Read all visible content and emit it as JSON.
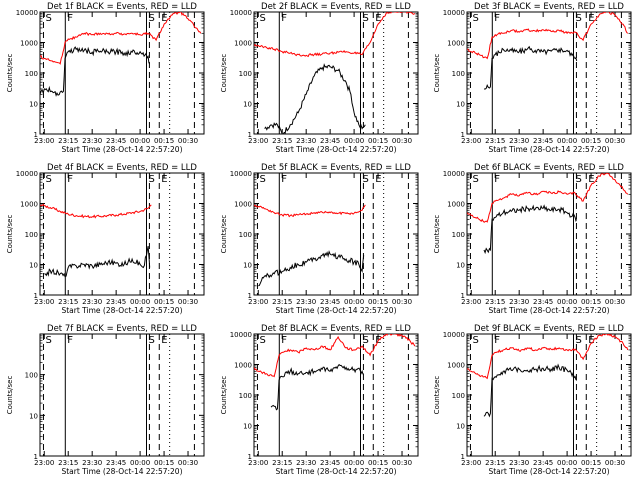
{
  "chart_data": [
    {
      "type": "line",
      "panel": "1f",
      "title": "Det 1f BLACK = Events, RED = LLD",
      "ylabel": "Counts/sec",
      "xlabel": "Start Time (28-Oct-14 22:57:20)",
      "x_ticks": [
        "23:00",
        "23:15",
        "23:30",
        "23:45",
        "00:00",
        "00:15",
        "00:30"
      ],
      "y_ticks": [
        "1",
        "10",
        "100",
        "1000",
        "10000"
      ],
      "ylim": [
        1,
        10000
      ],
      "yscale": "log",
      "markers": [
        "S",
        "F",
        "S",
        "E"
      ],
      "series": [
        {
          "color": "#000000",
          "x": [
            "22:57:20",
            "23:00",
            "23:05",
            "23:08",
            "23:12",
            "23:13",
            "23:15",
            "23:20",
            "23:25",
            "23:30",
            "23:35",
            "23:40",
            "23:45",
            "23:50",
            "23:55",
            "00:00",
            "00:05",
            "00:06"
          ],
          "y": [
            20,
            30,
            25,
            22,
            25,
            300,
            500,
            600,
            550,
            480,
            520,
            490,
            500,
            450,
            480,
            500,
            350,
            200
          ]
        },
        {
          "color": "#ff0000",
          "x": [
            "22:57:20",
            "23:00",
            "23:05",
            "23:10",
            "23:13",
            "23:15",
            "23:20",
            "23:25",
            "23:30",
            "23:35",
            "23:40",
            "23:45",
            "23:50",
            "23:55",
            "00:00",
            "00:05",
            "00:10",
            "00:15",
            "00:20",
            "00:25",
            "00:30",
            "00:35",
            "00:38"
          ],
          "y": [
            350,
            300,
            250,
            200,
            1000,
            1300,
            1500,
            2000,
            1800,
            2000,
            1900,
            2000,
            1900,
            2000,
            1800,
            2000,
            1200,
            4000,
            8000,
            10000,
            6000,
            3000,
            2000
          ]
        }
      ]
    },
    {
      "type": "line",
      "panel": "2f",
      "title": "Det 2f BLACK = Events, RED = LLD",
      "ylabel": "Counts/sec",
      "xlabel": "Start Time (28-Oct-14 22:57:20)",
      "x_ticks": [
        "23:00",
        "23:15",
        "23:30",
        "23:45",
        "00:00",
        "00:15",
        "00:30"
      ],
      "y_ticks": [
        "1",
        "10",
        "100",
        "1000",
        "10000"
      ],
      "ylim": [
        1,
        10000
      ],
      "yscale": "log",
      "markers": [
        "S",
        "F",
        "S",
        "E"
      ],
      "series": [
        {
          "color": "#000000",
          "x": [
            "23:04",
            "23:08",
            "23:12",
            "23:15",
            "23:20",
            "23:25",
            "23:30",
            "23:35",
            "23:40",
            "23:45",
            "23:50",
            "23:55",
            "23:58",
            "00:00",
            "00:03",
            "00:05",
            "00:07"
          ],
          "y": [
            1.5,
            2,
            2,
            1,
            2,
            5,
            20,
            80,
            150,
            160,
            120,
            50,
            20,
            5,
            2,
            1.5,
            2
          ]
        },
        {
          "color": "#ff0000",
          "x": [
            "22:57:20",
            "23:00",
            "23:05",
            "23:10",
            "23:15",
            "23:20",
            "23:25",
            "23:30",
            "23:35",
            "23:40",
            "23:45",
            "23:50",
            "23:55",
            "00:00",
            "00:05",
            "00:10",
            "00:15",
            "00:20",
            "00:25",
            "00:30",
            "00:35",
            "00:38"
          ],
          "y": [
            800,
            800,
            700,
            600,
            500,
            450,
            400,
            380,
            400,
            420,
            450,
            480,
            500,
            450,
            400,
            1000,
            4000,
            9000,
            10000,
            10000,
            10000,
            9000
          ]
        }
      ]
    },
    {
      "type": "line",
      "panel": "3f",
      "title": "Det 3f BLACK = Events, RED = LLD",
      "ylabel": "Counts/sec",
      "xlabel": "Start Time (28-Oct-14 22:57:20)",
      "x_ticks": [
        "23:00",
        "23:15",
        "23:30",
        "23:45",
        "00:00",
        "00:15",
        "00:30"
      ],
      "y_ticks": [
        "1",
        "10",
        "100",
        "1000",
        "10000"
      ],
      "ylim": [
        1,
        10000
      ],
      "yscale": "log",
      "markers": [
        "S",
        "F",
        "S",
        "E"
      ],
      "series": [
        {
          "color": "#000000",
          "x": [
            "23:08",
            "23:12",
            "23:13",
            "23:15",
            "23:20",
            "23:25",
            "23:30",
            "23:35",
            "23:40",
            "23:45",
            "23:50",
            "23:55",
            "00:00",
            "00:05",
            "00:06"
          ],
          "y": [
            30,
            35,
            300,
            400,
            600,
            550,
            500,
            600,
            550,
            500,
            520,
            600,
            550,
            300,
            250
          ]
        },
        {
          "color": "#ff0000",
          "x": [
            "22:57:20",
            "23:00",
            "23:05",
            "23:10",
            "23:13",
            "23:15",
            "23:20",
            "23:25",
            "23:30",
            "23:35",
            "23:40",
            "23:45",
            "23:50",
            "23:55",
            "00:00",
            "00:05",
            "00:10",
            "00:15",
            "00:20",
            "00:25",
            "00:30",
            "00:35",
            "00:38"
          ],
          "y": [
            600,
            500,
            400,
            300,
            1500,
            1800,
            2000,
            2500,
            2200,
            2600,
            2400,
            2600,
            2300,
            2500,
            2000,
            2200,
            1200,
            4000,
            8000,
            10000,
            8000,
            4000,
            2000
          ]
        }
      ]
    },
    {
      "type": "line",
      "panel": "4f",
      "title": "Det 4f BLACK = Events, RED = LLD",
      "ylabel": "Counts/sec",
      "xlabel": "Start Time (28-Oct-14 22:57:20)",
      "x_ticks": [
        "23:00",
        "23:15",
        "23:30",
        "23:45",
        "00:00",
        "00:15",
        "00:30"
      ],
      "y_ticks": [
        "1",
        "10",
        "100",
        "1000",
        "10000"
      ],
      "ylim": [
        1,
        10000
      ],
      "yscale": "log",
      "markers": [
        "S",
        "F",
        "S",
        "E"
      ],
      "series": [
        {
          "color": "#000000",
          "x": [
            "23:00",
            "23:05",
            "23:10",
            "23:13",
            "23:15",
            "23:20",
            "23:25",
            "23:30",
            "23:35",
            "23:40",
            "23:45",
            "23:50",
            "23:55",
            "00:00",
            "00:02",
            "00:04",
            "00:05",
            "00:06"
          ],
          "y": [
            5,
            6,
            5,
            4,
            8,
            9,
            10,
            9,
            10,
            12,
            11,
            10,
            15,
            10,
            8,
            20,
            40,
            8
          ]
        },
        {
          "color": "#ff0000",
          "x": [
            "22:57:20",
            "23:00",
            "23:05",
            "23:10",
            "23:15",
            "23:20",
            "23:25",
            "23:30",
            "23:35",
            "23:40",
            "23:45",
            "23:50",
            "23:55",
            "00:00",
            "00:05",
            "00:07"
          ],
          "y": [
            900,
            850,
            700,
            550,
            450,
            400,
            380,
            370,
            380,
            400,
            420,
            450,
            500,
            550,
            700,
            900
          ]
        }
      ]
    },
    {
      "type": "line",
      "panel": "5f",
      "title": "Det 5f BLACK = Events, RED = LLD",
      "ylabel": "Counts/sec",
      "xlabel": "Start Time (28-Oct-14 22:57:20)",
      "x_ticks": [
        "23:00",
        "23:15",
        "23:30",
        "23:45",
        "00:00",
        "00:15",
        "00:30"
      ],
      "y_ticks": [
        "1",
        "10",
        "100",
        "1000",
        "10000"
      ],
      "ylim": [
        1,
        10000
      ],
      "yscale": "log",
      "markers": [
        "S",
        "F",
        "S",
        "E"
      ],
      "series": [
        {
          "color": "#000000",
          "x": [
            "23:00",
            "23:02",
            "23:05",
            "23:10",
            "23:15",
            "23:20",
            "23:25",
            "23:30",
            "23:35",
            "23:40",
            "23:45",
            "23:50",
            "23:55",
            "00:00",
            "00:03",
            "00:05",
            "00:06"
          ],
          "y": [
            2,
            3,
            4,
            5,
            6,
            8,
            10,
            12,
            15,
            20,
            22,
            18,
            15,
            12,
            10,
            6,
            20
          ]
        },
        {
          "color": "#ff0000",
          "x": [
            "22:57:20",
            "23:00",
            "23:05",
            "23:10",
            "23:15",
            "23:20",
            "23:25",
            "23:30",
            "23:35",
            "23:40",
            "23:45",
            "23:50",
            "23:55",
            "00:00",
            "00:05",
            "00:07"
          ],
          "y": [
            900,
            800,
            650,
            500,
            420,
            400,
            420,
            450,
            500,
            520,
            500,
            480,
            470,
            480,
            600,
            900
          ]
        }
      ]
    },
    {
      "type": "line",
      "panel": "6f",
      "title": "Det 6f BLACK = Events, RED = LLD",
      "ylabel": "Counts/sec",
      "xlabel": "Start Time (28-Oct-14 22:57:20)",
      "x_ticks": [
        "23:00",
        "23:15",
        "23:30",
        "23:45",
        "00:00",
        "00:15",
        "00:30"
      ],
      "y_ticks": [
        "1",
        "10",
        "100",
        "1000",
        "10000"
      ],
      "ylim": [
        1,
        10000
      ],
      "yscale": "log",
      "markers": [
        "S",
        "F",
        "S",
        "E"
      ],
      "series": [
        {
          "color": "#000000",
          "x": [
            "23:08",
            "23:12",
            "23:13",
            "23:15",
            "23:20",
            "23:25",
            "23:30",
            "23:35",
            "23:40",
            "23:45",
            "23:50",
            "23:55",
            "00:00",
            "00:05",
            "00:06"
          ],
          "y": [
            30,
            30,
            300,
            350,
            500,
            550,
            600,
            700,
            650,
            700,
            600,
            650,
            500,
            350,
            300
          ]
        },
        {
          "color": "#ff0000",
          "x": [
            "22:57:20",
            "23:00",
            "23:05",
            "23:10",
            "23:13",
            "23:15",
            "23:20",
            "23:25",
            "23:30",
            "23:35",
            "23:40",
            "23:45",
            "23:50",
            "23:55",
            "00:00",
            "00:05",
            "00:10",
            "00:15",
            "00:20",
            "00:25",
            "00:30",
            "00:35",
            "00:38"
          ],
          "y": [
            500,
            400,
            300,
            250,
            1000,
            1200,
            1500,
            2000,
            1800,
            2200,
            2000,
            2500,
            2200,
            2400,
            2000,
            2200,
            1200,
            4000,
            8000,
            10000,
            6000,
            3000,
            2000
          ]
        }
      ]
    },
    {
      "type": "line",
      "panel": "7f",
      "title": "Det 7f BLACK = Events, RED = LLD",
      "ylabel": "Counts/sec",
      "xlabel": "Start Time (28-Oct-14 22:57:20)",
      "x_ticks": [
        "23:00",
        "23:15",
        "23:30",
        "23:45",
        "00:00",
        "00:15",
        "00:30"
      ],
      "y_ticks": [
        "1",
        "10",
        "100"
      ],
      "ylim": [
        1,
        1000
      ],
      "yscale": "log",
      "markers": [
        "S",
        "F",
        "S",
        "E"
      ],
      "series": []
    },
    {
      "type": "line",
      "panel": "8f",
      "title": "Det 8f BLACK = Events, RED = LLD",
      "ylabel": "Counts/sec",
      "xlabel": "Start Time (28-Oct-14 22:57:20)",
      "x_ticks": [
        "23:00",
        "23:15",
        "23:30",
        "23:45",
        "00:00",
        "00:15",
        "00:30"
      ],
      "y_ticks": [
        "1",
        "10",
        "100",
        "1000",
        "10000"
      ],
      "ylim": [
        1,
        10000
      ],
      "yscale": "log",
      "markers": [
        "S",
        "F",
        "S",
        "E"
      ],
      "series": [
        {
          "color": "#000000",
          "x": [
            "23:08",
            "23:12",
            "23:13",
            "23:15",
            "23:20",
            "23:25",
            "23:30",
            "23:35",
            "23:40",
            "23:45",
            "23:50",
            "23:55",
            "00:00",
            "00:05",
            "00:06"
          ],
          "y": [
            40,
            35,
            300,
            400,
            600,
            500,
            550,
            600,
            700,
            600,
            900,
            800,
            700,
            600,
            500
          ]
        },
        {
          "color": "#ff0000",
          "x": [
            "22:57:20",
            "23:00",
            "23:05",
            "23:10",
            "23:13",
            "23:15",
            "23:20",
            "23:25",
            "23:30",
            "23:35",
            "23:40",
            "23:45",
            "23:50",
            "23:55",
            "00:00",
            "00:05",
            "00:10",
            "00:15",
            "00:20",
            "00:25",
            "00:30",
            "00:35",
            "00:38"
          ],
          "y": [
            800,
            600,
            500,
            400,
            2000,
            2500,
            3000,
            2500,
            3500,
            3000,
            4000,
            3000,
            8000,
            3500,
            3000,
            4000,
            2000,
            6000,
            10000,
            10000,
            9000,
            6000,
            4000
          ]
        }
      ]
    },
    {
      "type": "line",
      "panel": "9f",
      "title": "Det 9f BLACK = Events, RED = LLD",
      "ylabel": "Counts/sec",
      "xlabel": "Start Time (28-Oct-14 22:57:20)",
      "x_ticks": [
        "23:00",
        "23:15",
        "23:30",
        "23:45",
        "00:00",
        "00:15",
        "00:30"
      ],
      "y_ticks": [
        "1",
        "10",
        "100",
        "1000",
        "10000"
      ],
      "ylim": [
        1,
        10000
      ],
      "yscale": "log",
      "markers": [
        "S",
        "F",
        "S",
        "E"
      ],
      "series": [
        {
          "color": "#000000",
          "x": [
            "23:08",
            "23:12",
            "23:13",
            "23:15",
            "23:20",
            "23:25",
            "23:30",
            "23:35",
            "23:40",
            "23:45",
            "23:50",
            "23:55",
            "00:00",
            "00:05",
            "00:06"
          ],
          "y": [
            20,
            25,
            350,
            400,
            600,
            650,
            700,
            650,
            700,
            750,
            700,
            800,
            650,
            400,
            300
          ]
        },
        {
          "color": "#ff0000",
          "x": [
            "22:57:20",
            "23:00",
            "23:05",
            "23:10",
            "23:13",
            "23:15",
            "23:20",
            "23:25",
            "23:30",
            "23:35",
            "23:40",
            "23:45",
            "23:50",
            "23:55",
            "00:00",
            "00:05",
            "00:10",
            "00:15",
            "00:20",
            "00:25",
            "00:30",
            "00:35",
            "00:38"
          ],
          "y": [
            700,
            600,
            450,
            350,
            2000,
            2500,
            3000,
            3500,
            2800,
            3500,
            3000,
            3500,
            3200,
            3500,
            3000,
            3200,
            1500,
            5000,
            9000,
            10000,
            8000,
            5000,
            3000
          ]
        }
      ]
    }
  ]
}
